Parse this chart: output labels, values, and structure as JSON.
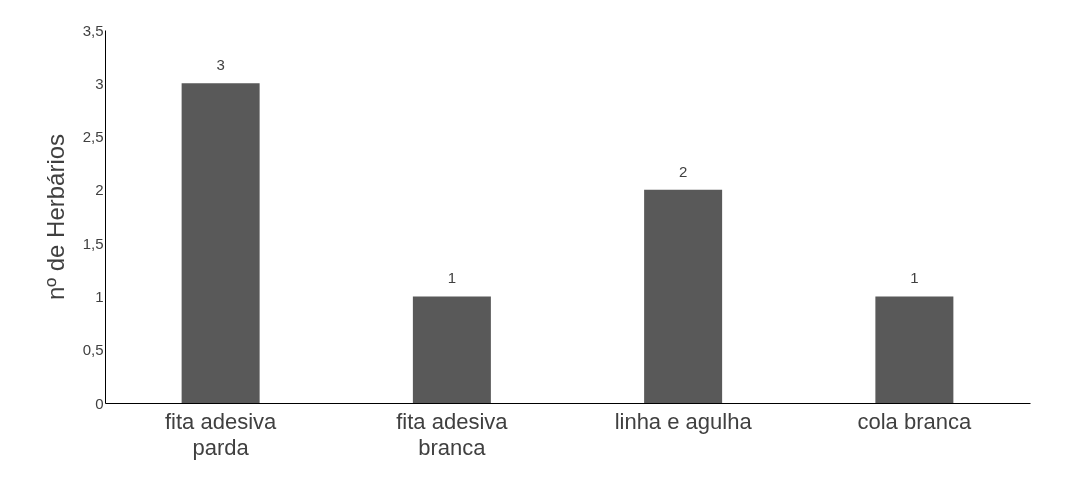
{
  "chart_data": {
    "type": "bar",
    "ylabel": "nº de Herbários",
    "categories": [
      "fita adesiva parda",
      "fita adesiva branca",
      "linha e agulha",
      "cola branca"
    ],
    "values": [
      3,
      1,
      2,
      1
    ],
    "color": "#595959",
    "ylim": [
      0,
      3.5
    ],
    "yticks": [
      0,
      {
        "value": 0.5,
        "label": "0,5"
      },
      1,
      {
        "value": 1.5,
        "label": "1,5"
      },
      2,
      {
        "value": 2.5,
        "label": "2,5"
      },
      3,
      {
        "value": 3.5,
        "label": "3,5"
      }
    ],
    "grid": false,
    "data_labels": true
  }
}
